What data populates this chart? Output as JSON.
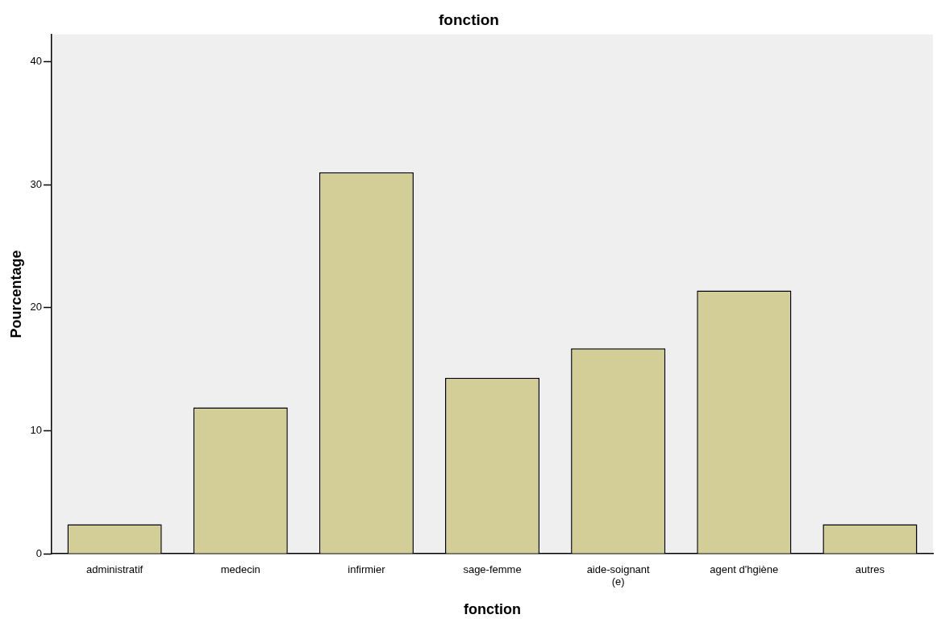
{
  "chart_data": {
    "type": "bar",
    "title": "fonction",
    "xlabel": "fonction",
    "ylabel": "Pourcentage",
    "categories": [
      "administratif",
      "medecin",
      "infirmier",
      "sage-femme",
      "aide-soignant (e)",
      "agent d'hgiène",
      "autres"
    ],
    "values": [
      2.4,
      11.9,
      31.0,
      14.3,
      16.7,
      21.4,
      2.4
    ],
    "color": "#d3ce97",
    "ylim": [
      0,
      42.2
    ],
    "yticks": [
      0,
      10,
      20,
      30,
      40
    ],
    "grid": false,
    "legend": false
  }
}
